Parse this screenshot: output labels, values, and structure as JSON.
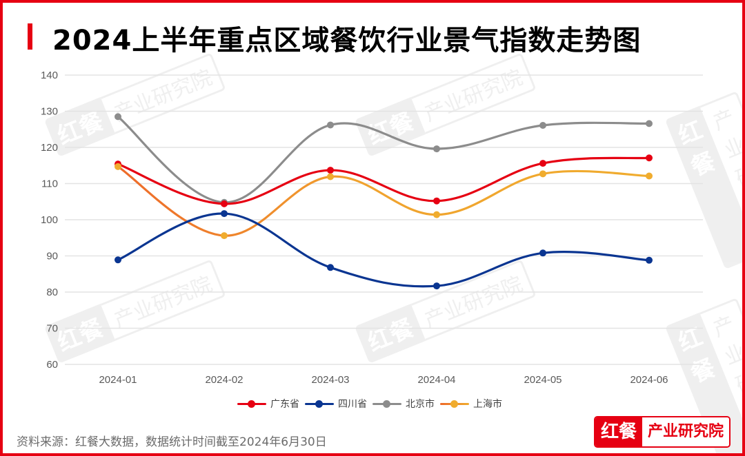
{
  "header": {
    "title": "2024上半年重点区域餐饮行业景气指数走势图"
  },
  "watermark": {
    "left": "红餐",
    "right": "产业研究院"
  },
  "footer": {
    "source": "资料来源：红餐大数据，数据统计时间截至2024年6月30日",
    "brand_left": "红餐",
    "brand_right": "产业研究院"
  },
  "colors": {
    "border": "#e60012",
    "guangdong": "#e60012",
    "sichuan": "#0a3591",
    "beijing": "#8c8c8c",
    "shanghai_start": "#ee6a2a",
    "shanghai_end": "#f0ac2e",
    "grid": "#e3e3e3"
  },
  "chart_data": {
    "type": "line",
    "title": "2024上半年重点区域餐饮行业景气指数走势图",
    "xlabel": "",
    "ylabel": "",
    "categories": [
      "2024-01",
      "2024-02",
      "2024-03",
      "2024-04",
      "2024-05",
      "2024-06"
    ],
    "ylim": [
      60,
      140
    ],
    "yticks": [
      60,
      70,
      80,
      90,
      100,
      110,
      120,
      130,
      140
    ],
    "grid": true,
    "legend_position": "bottom",
    "smooth": true,
    "series": [
      {
        "name": "广东省",
        "color": "#e60012",
        "values": [
          115.4,
          104.4,
          113.7,
          105.2,
          115.6,
          117.1
        ]
      },
      {
        "name": "四川省",
        "color": "#0a3591",
        "values": [
          88.9,
          101.7,
          86.8,
          81.7,
          90.8,
          88.8
        ]
      },
      {
        "name": "北京市",
        "color": "#8c8c8c",
        "values": [
          128.5,
          104.8,
          126.2,
          119.6,
          126.1,
          126.6
        ]
      },
      {
        "name": "上海市",
        "color": "#f0ac2e",
        "values": [
          114.7,
          95.6,
          111.9,
          101.4,
          112.7,
          112.1
        ]
      }
    ]
  }
}
